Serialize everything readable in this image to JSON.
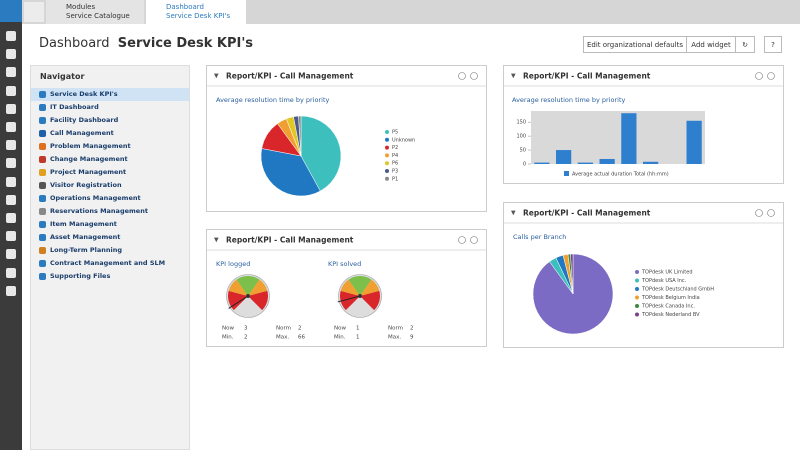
{
  "tabs": [
    {
      "line1": "Modules",
      "line2": "Service Catalogue"
    },
    {
      "line1": "Dashboard",
      "line2": "Service Desk KPI's"
    }
  ],
  "header": {
    "title": "Dashboard",
    "subtitle": "Service Desk KPI's",
    "buttons": [
      "Edit organizational defaults",
      "Add widget"
    ]
  },
  "navigator": {
    "title": "Navigator",
    "items": [
      "Service Desk KPI's",
      "IT Dashboard",
      "Facility Dashboard",
      "Call Management",
      "Problem Management",
      "Change Management",
      "Project Management",
      "Visitor Registration",
      "Operations Management",
      "Reservations Management",
      "Item Management",
      "Asset Management",
      "Long-Term Planning",
      "Contract Management and SLM",
      "Supporting Files"
    ]
  },
  "widgets": [
    {
      "title": "Report/KPI - Call Management",
      "chart_data": {
        "type": "pie",
        "title": "Average resolution time by priority",
        "categories": [
          "P5",
          "Unknown",
          "P2",
          "P4",
          "P6",
          "P3",
          "P1"
        ],
        "values": [
          42,
          36,
          12,
          4,
          3,
          2,
          1
        ],
        "colors": [
          "#3dbfbd",
          "#1f78c1",
          "#d9262b",
          "#f0a030",
          "#e2c626",
          "#4a5a8a",
          "#8a8a8a"
        ]
      }
    },
    {
      "title": "Report/KPI - Call Management",
      "gauges": [
        {
          "title": "KPI logged",
          "stats": [
            {
              "label": "Now",
              "value": 3
            },
            {
              "label": "Min.",
              "value": 2
            },
            {
              "label": "Norm",
              "value": 2
            },
            {
              "label": "Max.",
              "value": 66
            }
          ]
        },
        {
          "title": "KPI solved",
          "stats": [
            {
              "label": "Now",
              "value": 1
            },
            {
              "label": "Min.",
              "value": 1
            },
            {
              "label": "Norm",
              "value": 2
            },
            {
              "label": "Max.",
              "value": 9
            }
          ]
        }
      ]
    },
    {
      "title": "Report/KPI - Call Management",
      "chart_data": {
        "type": "bar",
        "title": "Average resolution time by priority",
        "categories": [
          null,
          null,
          null,
          null,
          null,
          null,
          null,
          null
        ],
        "series": [
          {
            "name": "Average actual duration Total (hh:mm)",
            "color": "#2f7fcf",
            "values": [
              5,
              50,
              5,
              18,
              182,
              8,
              0,
              155
            ]
          }
        ],
        "ylim": [
          0,
          190
        ],
        "yticks": [
          0,
          50,
          100,
          150
        ]
      }
    },
    {
      "title": "Report/KPI - Call Management",
      "chart_data": {
        "type": "pie",
        "title": "Calls per Branch",
        "categories": [
          "TOPdesk UK Limited",
          "TOPdesk USA Inc.",
          "TOPdesk Deutschland GmbH",
          "TOPdesk Belgium India",
          "TOPdesk Canada Inc.",
          "TOPdesk Nederland BV"
        ],
        "values": [
          90,
          3,
          3,
          2,
          1,
          1
        ],
        "colors": [
          "#7b6bc4",
          "#3dbfbd",
          "#1f78c1",
          "#f0a030",
          "#3a8a3a",
          "#7b3f8c"
        ]
      }
    }
  ]
}
